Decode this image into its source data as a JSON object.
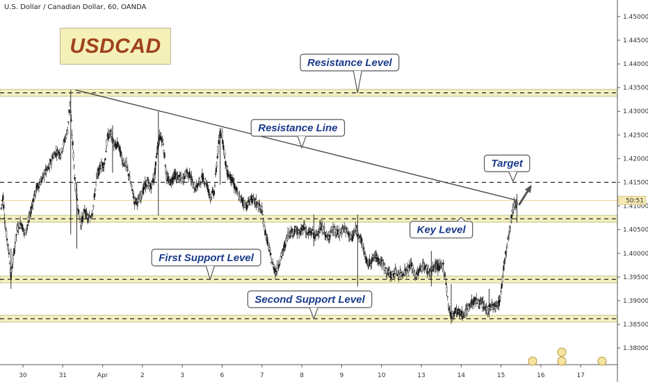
{
  "header": {
    "title": "U.S. Dollar / Canadian Dollar, 60, OANDA"
  },
  "logo": {
    "text": "USDCAD"
  },
  "chart_data": {
    "type": "candlestick",
    "ylim": [
      1.3765,
      1.4535
    ],
    "y_ticks": [
      "1.45000",
      "1.44500",
      "1.44000",
      "1.43500",
      "1.43000",
      "1.42500",
      "1.42000",
      "1.41500",
      "1.41000",
      "1.40500",
      "1.40000",
      "1.39500",
      "1.39000",
      "1.38500",
      "1.38000"
    ],
    "y_tick_values": [
      1.45,
      1.445,
      1.44,
      1.435,
      1.43,
      1.425,
      1.42,
      1.415,
      1.41,
      1.405,
      1.4,
      1.395,
      1.39,
      1.385,
      1.38
    ],
    "x_ticks": [
      "30",
      "31",
      "Apr",
      "2",
      "3",
      "6",
      "7",
      "8",
      "9",
      "10",
      "13",
      "14",
      "15",
      "16",
      "17"
    ],
    "x_tick_values": [
      0,
      1,
      2,
      3,
      4,
      5,
      6,
      7,
      8,
      9,
      10,
      11,
      12,
      13,
      14
    ],
    "price_label": {
      "text": "50:51",
      "value": 1.4112
    },
    "zones": [
      {
        "name": "Resistance Level",
        "value": 1.4339
      },
      {
        "name": "Key Level",
        "value": 1.4073
      },
      {
        "name": "First Support Level",
        "value": 1.3945
      },
      {
        "name": "Second Support Level",
        "value": 1.3862
      }
    ],
    "target_line": 1.415,
    "resistance_line": {
      "from": [
        1.32,
        1.4345
      ],
      "to": [
        12.4,
        1.4112
      ]
    },
    "target_arrow": {
      "from": [
        12.45,
        1.4102
      ],
      "to": [
        12.75,
        1.4142
      ]
    },
    "callouts": [
      {
        "text": "Resistance Level",
        "x": 8.2,
        "y": 1.4403,
        "px": 8.4,
        "py": 1.4339
      },
      {
        "text": "Resistance Line",
        "x": 6.9,
        "y": 1.4265,
        "px": 7.0,
        "py": 1.4223
      },
      {
        "text": "Target",
        "x": 12.15,
        "y": 1.419,
        "px": 12.3,
        "py": 1.4152
      },
      {
        "text": "Key Level",
        "x": 10.5,
        "y": 1.405,
        "px": 11.0,
        "py": 1.4076
      },
      {
        "text": "First Support Level",
        "x": 4.6,
        "y": 1.3991,
        "px": 4.7,
        "py": 1.3945
      },
      {
        "text": "Second Support Level",
        "x": 7.2,
        "y": 1.3903,
        "px": 7.3,
        "py": 1.3862
      }
    ],
    "path": [
      [
        -0.55,
        1.4095
      ],
      [
        -0.5,
        1.412
      ],
      [
        -0.45,
        1.406
      ],
      [
        -0.35,
        1.4
      ],
      [
        -0.3,
        1.395
      ],
      [
        -0.25,
        1.3985
      ],
      [
        -0.15,
        1.405
      ],
      [
        -0.05,
        1.4065
      ],
      [
        0.05,
        1.404
      ],
      [
        0.15,
        1.407
      ],
      [
        0.25,
        1.411
      ],
      [
        0.35,
        1.414
      ],
      [
        0.45,
        1.415
      ],
      [
        0.55,
        1.417
      ],
      [
        0.65,
        1.418
      ],
      [
        0.75,
        1.4205
      ],
      [
        0.85,
        1.4215
      ],
      [
        0.95,
        1.421
      ],
      [
        1.05,
        1.424
      ],
      [
        1.12,
        1.426
      ],
      [
        1.18,
        1.432
      ],
      [
        1.25,
        1.423
      ],
      [
        1.32,
        1.414
      ],
      [
        1.38,
        1.41
      ],
      [
        1.45,
        1.406
      ],
      [
        1.55,
        1.409
      ],
      [
        1.65,
        1.407
      ],
      [
        1.75,
        1.409
      ],
      [
        1.85,
        1.416
      ],
      [
        1.95,
        1.4185
      ],
      [
        2.05,
        1.419
      ],
      [
        2.12,
        1.4245
      ],
      [
        2.2,
        1.4255
      ],
      [
        2.3,
        1.4225
      ],
      [
        2.4,
        1.423
      ],
      [
        2.5,
        1.4195
      ],
      [
        2.6,
        1.4185
      ],
      [
        2.7,
        1.415
      ],
      [
        2.8,
        1.411
      ],
      [
        2.9,
        1.411
      ],
      [
        3.0,
        1.413
      ],
      [
        3.1,
        1.415
      ],
      [
        3.2,
        1.414
      ],
      [
        3.3,
        1.416
      ],
      [
        3.38,
        1.4225
      ],
      [
        3.45,
        1.425
      ],
      [
        3.52,
        1.4235
      ],
      [
        3.6,
        1.416
      ],
      [
        3.7,
        1.415
      ],
      [
        3.8,
        1.4165
      ],
      [
        3.9,
        1.416
      ],
      [
        4.0,
        1.4155
      ],
      [
        4.1,
        1.417
      ],
      [
        4.2,
        1.4165
      ],
      [
        4.3,
        1.4135
      ],
      [
        4.4,
        1.4145
      ],
      [
        4.5,
        1.416
      ],
      [
        4.6,
        1.415
      ],
      [
        4.7,
        1.412
      ],
      [
        4.8,
        1.413
      ],
      [
        4.9,
        1.422
      ],
      [
        4.95,
        1.4255
      ],
      [
        5.0,
        1.425
      ],
      [
        5.05,
        1.4215
      ],
      [
        5.12,
        1.417
      ],
      [
        5.22,
        1.416
      ],
      [
        5.32,
        1.414
      ],
      [
        5.42,
        1.412
      ],
      [
        5.52,
        1.411
      ],
      [
        5.62,
        1.41
      ],
      [
        5.72,
        1.4115
      ],
      [
        5.82,
        1.411
      ],
      [
        5.92,
        1.41
      ],
      [
        6.0,
        1.409
      ],
      [
        6.05,
        1.406
      ],
      [
        6.15,
        1.402
      ],
      [
        6.25,
        1.398
      ],
      [
        6.35,
        1.396
      ],
      [
        6.45,
        1.3985
      ],
      [
        6.55,
        1.401
      ],
      [
        6.65,
        1.404
      ],
      [
        6.75,
        1.4045
      ],
      [
        6.85,
        1.405
      ],
      [
        6.95,
        1.404
      ],
      [
        7.05,
        1.406
      ],
      [
        7.15,
        1.404
      ],
      [
        7.25,
        1.4045
      ],
      [
        7.35,
        1.4035
      ],
      [
        7.45,
        1.4055
      ],
      [
        7.55,
        1.405
      ],
      [
        7.65,
        1.403
      ],
      [
        7.75,
        1.405
      ],
      [
        7.85,
        1.4045
      ],
      [
        7.95,
        1.404
      ],
      [
        8.05,
        1.4055
      ],
      [
        8.15,
        1.4045
      ],
      [
        8.25,
        1.403
      ],
      [
        8.35,
        1.405
      ],
      [
        8.45,
        1.404
      ],
      [
        8.55,
        1.401
      ],
      [
        8.65,
        1.3975
      ],
      [
        8.75,
        1.3985
      ],
      [
        8.85,
        1.3995
      ],
      [
        8.95,
        1.3985
      ],
      [
        9.05,
        1.3975
      ],
      [
        9.15,
        1.396
      ],
      [
        9.25,
        1.3955
      ],
      [
        9.35,
        1.396
      ],
      [
        9.45,
        1.3955
      ],
      [
        9.55,
        1.396
      ],
      [
        9.65,
        1.3965
      ],
      [
        9.75,
        1.3975
      ],
      [
        9.85,
        1.395
      ],
      [
        9.95,
        1.3965
      ],
      [
        10.05,
        1.3975
      ],
      [
        10.15,
        1.3965
      ],
      [
        10.25,
        1.396
      ],
      [
        10.35,
        1.3975
      ],
      [
        10.45,
        1.397
      ],
      [
        10.55,
        1.3975
      ],
      [
        10.62,
        1.394
      ],
      [
        10.68,
        1.389
      ],
      [
        10.75,
        1.3865
      ],
      [
        10.85,
        1.388
      ],
      [
        10.95,
        1.3875
      ],
      [
        11.05,
        1.387
      ],
      [
        11.15,
        1.388
      ],
      [
        11.25,
        1.3895
      ],
      [
        11.35,
        1.39
      ],
      [
        11.45,
        1.3895
      ],
      [
        11.55,
        1.389
      ],
      [
        11.65,
        1.388
      ],
      [
        11.75,
        1.389
      ],
      [
        11.85,
        1.3885
      ],
      [
        11.95,
        1.3895
      ],
      [
        12.0,
        1.3915
      ],
      [
        12.05,
        1.396
      ],
      [
        12.1,
        1.399
      ],
      [
        12.15,
        1.402
      ],
      [
        12.2,
        1.4045
      ],
      [
        12.25,
        1.407
      ],
      [
        12.3,
        1.4095
      ],
      [
        12.35,
        1.4105
      ],
      [
        12.42,
        1.4112
      ]
    ],
    "wicks": [
      [
        -0.3,
        1.3925,
        1.401
      ],
      [
        1.2,
        1.404,
        1.4345
      ],
      [
        1.35,
        1.401,
        1.415
      ],
      [
        3.4,
        1.408,
        1.43
      ],
      [
        2.25,
        1.417,
        1.427
      ],
      [
        4.95,
        1.4145,
        1.4265
      ],
      [
        8.4,
        1.393,
        1.4082
      ],
      [
        7.3,
        1.4015,
        1.4082
      ],
      [
        10.25,
        1.393,
        1.4005
      ],
      [
        10.75,
        1.3855,
        1.3935
      ],
      [
        11.7,
        1.3865,
        1.3925
      ],
      [
        12.4,
        1.4065,
        1.4125
      ]
    ]
  }
}
